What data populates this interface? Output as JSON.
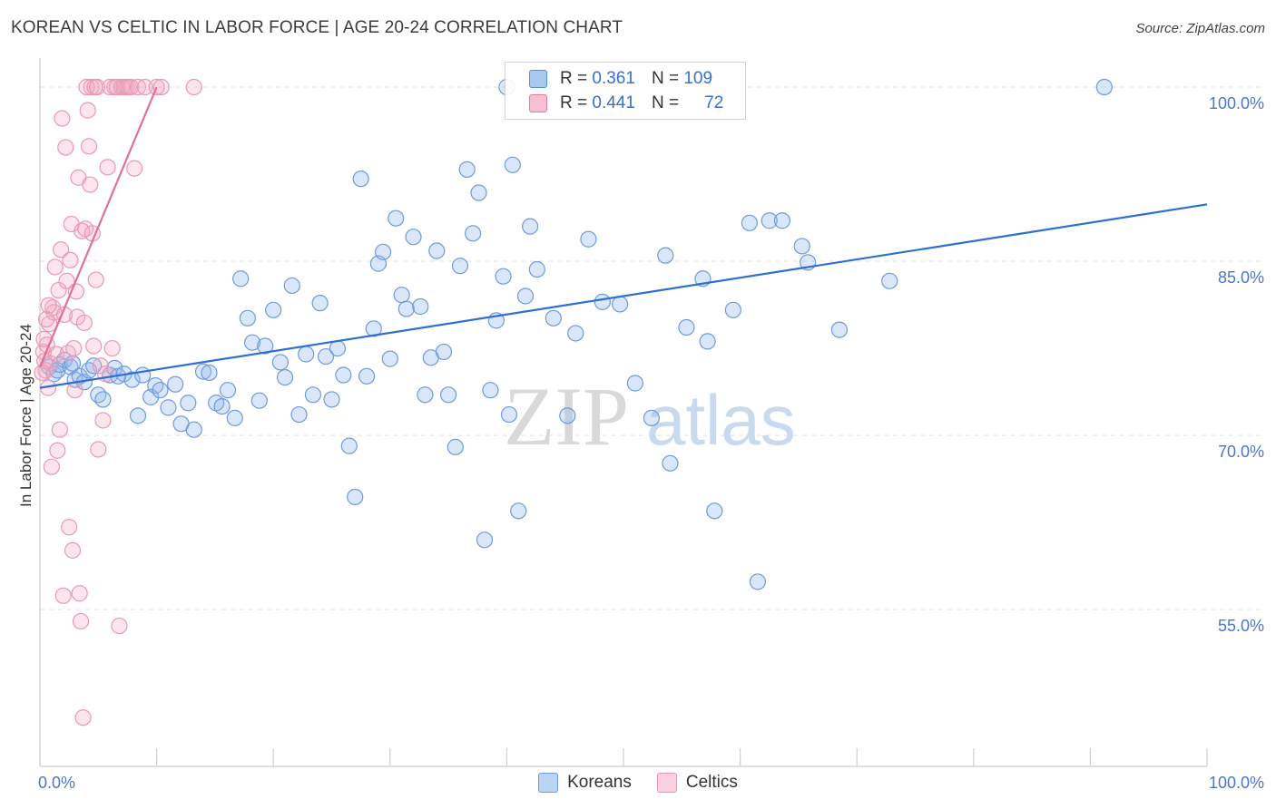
{
  "header": {
    "title": "KOREAN VS CELTIC IN LABOR FORCE | AGE 20-24 CORRELATION CHART",
    "source": "Source: ZipAtlas.com"
  },
  "watermark": {
    "zip": "ZIP",
    "atlas": "atlas"
  },
  "legend": {
    "rows": [
      {
        "r_label": "R =",
        "r_value": "0.361",
        "n_label": "N =",
        "n_value": "109",
        "color": "#a9c8f0",
        "border": "#5b8fd8"
      },
      {
        "r_label": "R =",
        "r_value": "0.441",
        "n_label": "N =",
        "n_value": "72",
        "color": "#f9bfd0",
        "border": "#e07da0"
      }
    ]
  },
  "bottom_legend": {
    "items": [
      {
        "label": "Koreans",
        "color": "#bcd4f4",
        "border": "#6f9ae0"
      },
      {
        "label": "Celtics",
        "color": "#fbd0dc",
        "border": "#e79ab4"
      }
    ]
  },
  "chart_data": {
    "type": "scatter",
    "xlabel": "",
    "ylabel": "In Labor Force | Age 20-24",
    "x_tick_labels": [
      "0.0%",
      "100.0%"
    ],
    "y_tick_labels": [
      "100.0%",
      "85.0%",
      "70.0%",
      "55.0%"
    ],
    "y_ticks": [
      100,
      85,
      70,
      55
    ],
    "xlim": [
      0,
      100
    ],
    "ylim": [
      41.5,
      102.5
    ],
    "grid": true,
    "series": [
      {
        "name": "Koreans",
        "color": "#6f9ae0",
        "fill": "rgba(150,185,235,0.35)",
        "trend": {
          "x": [
            0,
            100
          ],
          "y": [
            74.1,
            89.9
          ],
          "color": "#2f6fd0"
        },
        "points": [
          [
            0.8,
            75.9
          ],
          [
            1.2,
            75.3
          ],
          [
            1.5,
            75.6
          ],
          [
            1.7,
            76.1
          ],
          [
            2.1,
            76.5
          ],
          [
            2.6,
            75.9
          ],
          [
            2.8,
            76.2
          ],
          [
            3.0,
            74.8
          ],
          [
            3.4,
            75.1
          ],
          [
            3.8,
            74.6
          ],
          [
            4.2,
            75.6
          ],
          [
            4.6,
            76.0
          ],
          [
            5.0,
            73.5
          ],
          [
            5.4,
            73.1
          ],
          [
            6.0,
            75.2
          ],
          [
            6.4,
            75.8
          ],
          [
            6.7,
            75.1
          ],
          [
            7.2,
            75.3
          ],
          [
            7.9,
            74.8
          ],
          [
            8.4,
            71.7
          ],
          [
            8.8,
            75.2
          ],
          [
            9.5,
            73.3
          ],
          [
            9.9,
            74.3
          ],
          [
            10.3,
            73.9
          ],
          [
            11.0,
            72.4
          ],
          [
            11.6,
            74.4
          ],
          [
            12.1,
            71.0
          ],
          [
            12.7,
            72.8
          ],
          [
            13.2,
            70.5
          ],
          [
            14.0,
            75.5
          ],
          [
            14.5,
            75.4
          ],
          [
            15.1,
            72.8
          ],
          [
            15.6,
            72.5
          ],
          [
            16.1,
            73.9
          ],
          [
            16.7,
            71.5
          ],
          [
            17.2,
            83.5
          ],
          [
            17.8,
            80.1
          ],
          [
            18.2,
            78.0
          ],
          [
            18.8,
            73.0
          ],
          [
            19.3,
            77.7
          ],
          [
            20.0,
            80.8
          ],
          [
            20.6,
            76.3
          ],
          [
            21.0,
            75.0
          ],
          [
            21.6,
            82.9
          ],
          [
            22.2,
            71.8
          ],
          [
            22.8,
            77.0
          ],
          [
            23.4,
            73.5
          ],
          [
            24.0,
            81.4
          ],
          [
            24.5,
            76.8
          ],
          [
            25.0,
            73.1
          ],
          [
            25.5,
            77.5
          ],
          [
            26.0,
            75.2
          ],
          [
            26.5,
            69.1
          ],
          [
            27.0,
            64.7
          ],
          [
            27.5,
            92.1
          ],
          [
            28.0,
            75.1
          ],
          [
            28.6,
            79.2
          ],
          [
            29.0,
            84.8
          ],
          [
            29.4,
            85.8
          ],
          [
            30.0,
            76.6
          ],
          [
            30.5,
            88.7
          ],
          [
            31.0,
            82.1
          ],
          [
            31.4,
            80.9
          ],
          [
            32.0,
            87.1
          ],
          [
            32.6,
            81.1
          ],
          [
            33.0,
            73.5
          ],
          [
            33.5,
            76.7
          ],
          [
            34.0,
            85.9
          ],
          [
            34.6,
            77.2
          ],
          [
            35.0,
            73.5
          ],
          [
            35.6,
            69.0
          ],
          [
            36.0,
            84.6
          ],
          [
            36.6,
            92.9
          ],
          [
            37.1,
            87.4
          ],
          [
            37.6,
            90.9
          ],
          [
            38.1,
            61.0
          ],
          [
            38.6,
            73.9
          ],
          [
            39.1,
            79.9
          ],
          [
            39.7,
            83.7
          ],
          [
            40.0,
            100.0
          ],
          [
            40.5,
            93.3
          ],
          [
            41.0,
            63.5
          ],
          [
            41.6,
            82.0
          ],
          [
            42.0,
            88.0
          ],
          [
            42.6,
            84.3
          ],
          [
            43.1,
            100.0
          ],
          [
            44.0,
            80.1
          ],
          [
            45.2,
            71.7
          ],
          [
            45.9,
            78.8
          ],
          [
            47.0,
            86.9
          ],
          [
            48.2,
            81.5
          ],
          [
            49.7,
            81.3
          ],
          [
            51.0,
            74.5
          ],
          [
            52.4,
            71.5
          ],
          [
            53.6,
            85.5
          ],
          [
            54.0,
            67.6
          ],
          [
            55.4,
            79.3
          ],
          [
            56.8,
            83.5
          ],
          [
            57.2,
            78.1
          ],
          [
            57.8,
            63.5
          ],
          [
            59.4,
            80.8
          ],
          [
            60.8,
            88.3
          ],
          [
            61.5,
            57.4
          ],
          [
            62.5,
            88.5
          ],
          [
            63.6,
            88.5
          ],
          [
            65.3,
            86.3
          ],
          [
            65.8,
            84.9
          ],
          [
            68.5,
            79.1
          ],
          [
            72.8,
            83.3
          ],
          [
            91.2,
            100.0
          ],
          [
            40.2,
            71.8
          ]
        ]
      },
      {
        "name": "Celtics",
        "color": "#e79ab4",
        "fill": "rgba(245,170,195,0.30)",
        "trend": {
          "x": [
            0.0,
            10.0
          ],
          "y": [
            75.9,
            100.0
          ],
          "color": "#e0709a"
        },
        "points": [
          [
            0.3,
            77.2
          ],
          [
            0.4,
            76.4
          ],
          [
            0.5,
            75.6
          ],
          [
            0.6,
            77.8
          ],
          [
            0.7,
            74.1
          ],
          [
            0.8,
            79.6
          ],
          [
            0.9,
            76.2
          ],
          [
            1.0,
            67.3
          ],
          [
            1.1,
            81.0
          ],
          [
            1.2,
            80.6
          ],
          [
            1.3,
            84.5
          ],
          [
            1.4,
            77.0
          ],
          [
            1.5,
            68.7
          ],
          [
            1.6,
            82.5
          ],
          [
            1.7,
            70.5
          ],
          [
            1.8,
            86.0
          ],
          [
            1.9,
            97.3
          ],
          [
            2.0,
            56.2
          ],
          [
            2.1,
            80.4
          ],
          [
            2.2,
            94.8
          ],
          [
            2.3,
            83.3
          ],
          [
            2.4,
            77.1
          ],
          [
            2.5,
            62.1
          ],
          [
            2.6,
            85.1
          ],
          [
            2.7,
            88.2
          ],
          [
            2.8,
            60.1
          ],
          [
            2.9,
            77.5
          ],
          [
            3.0,
            73.9
          ],
          [
            3.1,
            82.4
          ],
          [
            3.2,
            80.2
          ],
          [
            3.3,
            92.2
          ],
          [
            3.4,
            56.4
          ],
          [
            3.5,
            54.0
          ],
          [
            3.6,
            87.6
          ],
          [
            3.7,
            45.7
          ],
          [
            3.8,
            79.7
          ],
          [
            3.9,
            87.8
          ],
          [
            4.0,
            100.0
          ],
          [
            4.1,
            98.0
          ],
          [
            4.2,
            94.9
          ],
          [
            4.3,
            91.6
          ],
          [
            4.4,
            100.0
          ],
          [
            4.5,
            87.4
          ],
          [
            4.6,
            77.7
          ],
          [
            4.7,
            100.0
          ],
          [
            4.8,
            83.4
          ],
          [
            4.9,
            100.0
          ],
          [
            5.0,
            68.8
          ],
          [
            5.2,
            76.0
          ],
          [
            5.4,
            71.3
          ],
          [
            5.6,
            75.3
          ],
          [
            5.8,
            93.1
          ],
          [
            6.0,
            100.0
          ],
          [
            6.2,
            77.5
          ],
          [
            6.4,
            100.0
          ],
          [
            6.6,
            100.0
          ],
          [
            6.8,
            53.6
          ],
          [
            7.0,
            100.0
          ],
          [
            7.2,
            100.0
          ],
          [
            7.4,
            100.0
          ],
          [
            7.6,
            100.0
          ],
          [
            7.8,
            100.0
          ],
          [
            8.1,
            93.0
          ],
          [
            8.4,
            100.0
          ],
          [
            9.0,
            100.0
          ],
          [
            10.0,
            100.0
          ],
          [
            10.4,
            100.0
          ],
          [
            13.2,
            100.0
          ],
          [
            0.2,
            75.4
          ],
          [
            0.35,
            78.3
          ],
          [
            0.55,
            80.0
          ],
          [
            0.75,
            81.2
          ]
        ]
      }
    ]
  }
}
